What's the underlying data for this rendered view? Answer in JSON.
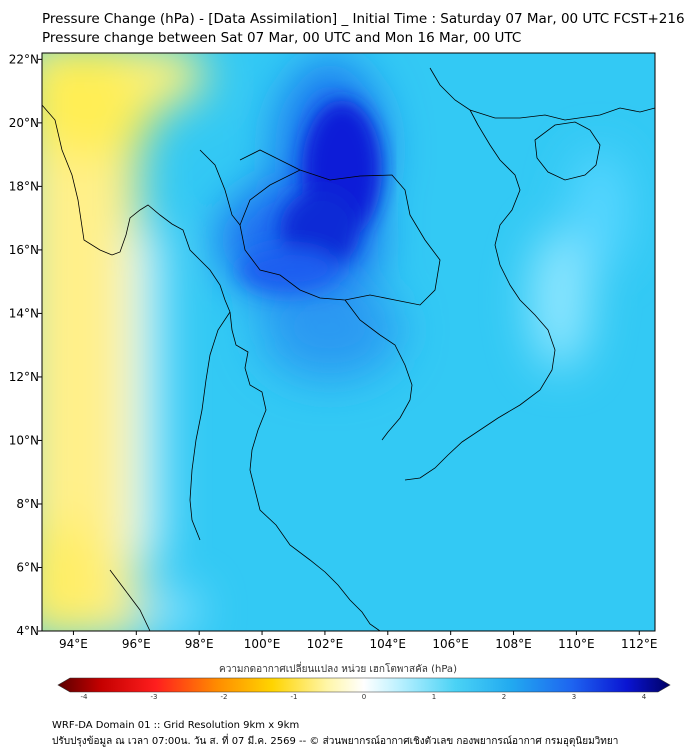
{
  "title_line1": "Pressure Change (hPa) - [Data Assimilation] _ Initial Time : Saturday 07 Mar, 00 UTC FCST+216",
  "title_line2": "Pressure change between Sat 07 Mar, 00 UTC and Mon 16 Mar, 00 UTC",
  "colorbar": {
    "title": "ความกดอากาศเปลี่ยนแปลง หน่วย เฮกโตพาสคัล (hPa)",
    "min": -4.2,
    "max": 4.2,
    "tick_values": [
      -4,
      -3,
      -2,
      -1,
      0,
      1,
      2,
      3,
      4
    ],
    "tick_labels": [
      "-4",
      "-3",
      "-2",
      "-1",
      "0",
      "1",
      "2",
      "3",
      "4"
    ]
  },
  "map": {
    "lon_range": [
      93,
      112.5
    ],
    "lat_range": [
      4,
      22.2
    ],
    "lon_ticks": [
      94,
      96,
      98,
      100,
      102,
      104,
      106,
      108,
      110,
      112
    ],
    "lon_labels": [
      "94°E",
      "96°E",
      "98°E",
      "100°E",
      "102°E",
      "104°E",
      "106°E",
      "108°E",
      "110°E",
      "112°E"
    ],
    "lat_ticks": [
      4,
      6,
      8,
      10,
      12,
      14,
      16,
      18,
      20,
      22
    ],
    "lat_labels": [
      "4°N",
      "6°N",
      "8°N",
      "10°N",
      "12°N",
      "14°N",
      "16°N",
      "18°N",
      "20°N",
      "22°N"
    ]
  },
  "footer_line1": "WRF-DA Domain 01 :: Grid Resolution 9km x 9km",
  "footer_line2": "ปรับปรุงข้อมูล ณ เวลา 07:00น. วัน ส. ที่ 07 มี.ค. 2569 -- © ส่วนพยากรณ์อากาศเชิงตัวเลข กองพยากรณ์อากาศ กรมอุตุนิยมวิทยา"
}
